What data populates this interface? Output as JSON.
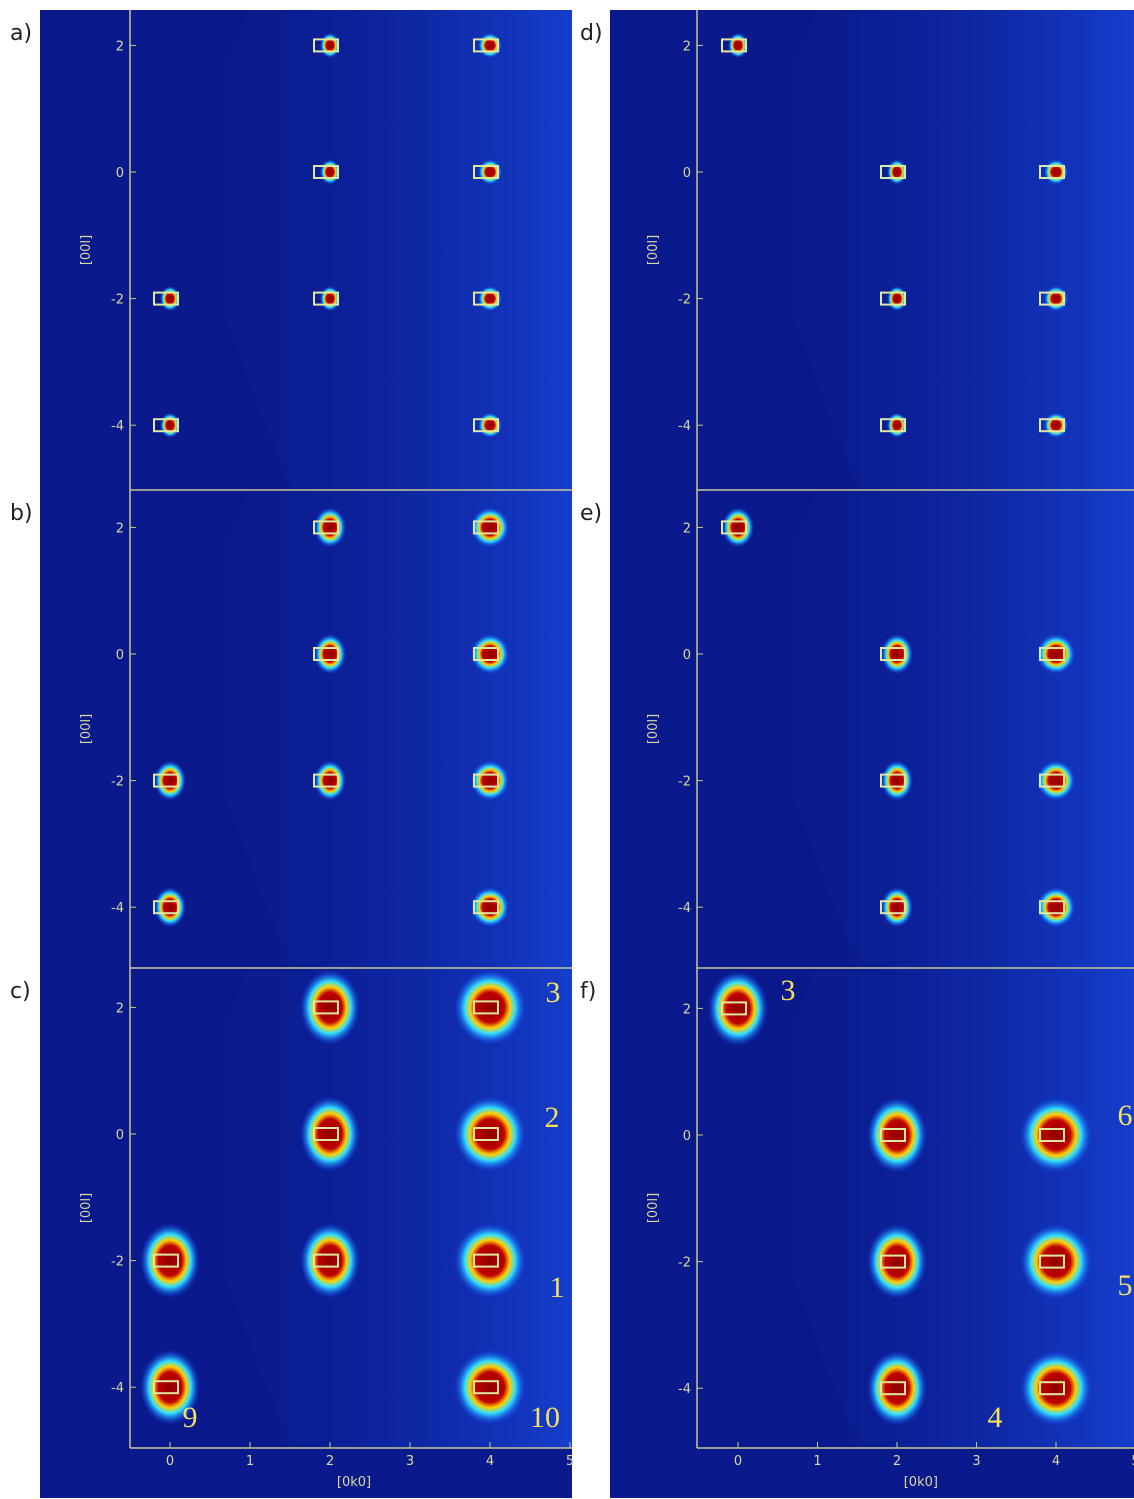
{
  "panels": [
    {
      "label": "a)",
      "yticks": [
        "2",
        "0",
        "-2",
        "-4"
      ],
      "ylabel": "[00l]"
    },
    {
      "label": "b)",
      "yticks": [
        "2",
        "0",
        "-2",
        "-4"
      ],
      "ylabel": "[00l]"
    },
    {
      "label": "c)",
      "yticks": [
        "2",
        "0",
        "-2",
        "-4"
      ],
      "ylabel": "[00l]",
      "xticks": [
        "0",
        "1",
        "2",
        "3",
        "4",
        "5"
      ],
      "xlabel": "[0k0]",
      "annotations": [
        "3",
        "2",
        "1",
        "9",
        "10"
      ]
    },
    {
      "label": "d)",
      "yticks": [
        "2",
        "0",
        "-2",
        "-4"
      ],
      "ylabel": "[00l]"
    },
    {
      "label": "e)",
      "yticks": [
        "2",
        "0",
        "-2",
        "-4"
      ],
      "ylabel": "[00l]"
    },
    {
      "label": "f)",
      "yticks": [
        "2",
        "0",
        "-2",
        "-4"
      ],
      "ylabel": "[00l]",
      "xticks": [
        "0",
        "1",
        "2",
        "3",
        "4",
        "5"
      ],
      "xlabel": "[0k0]",
      "annotations": [
        "3",
        "6",
        "5",
        "4"
      ]
    }
  ]
}
